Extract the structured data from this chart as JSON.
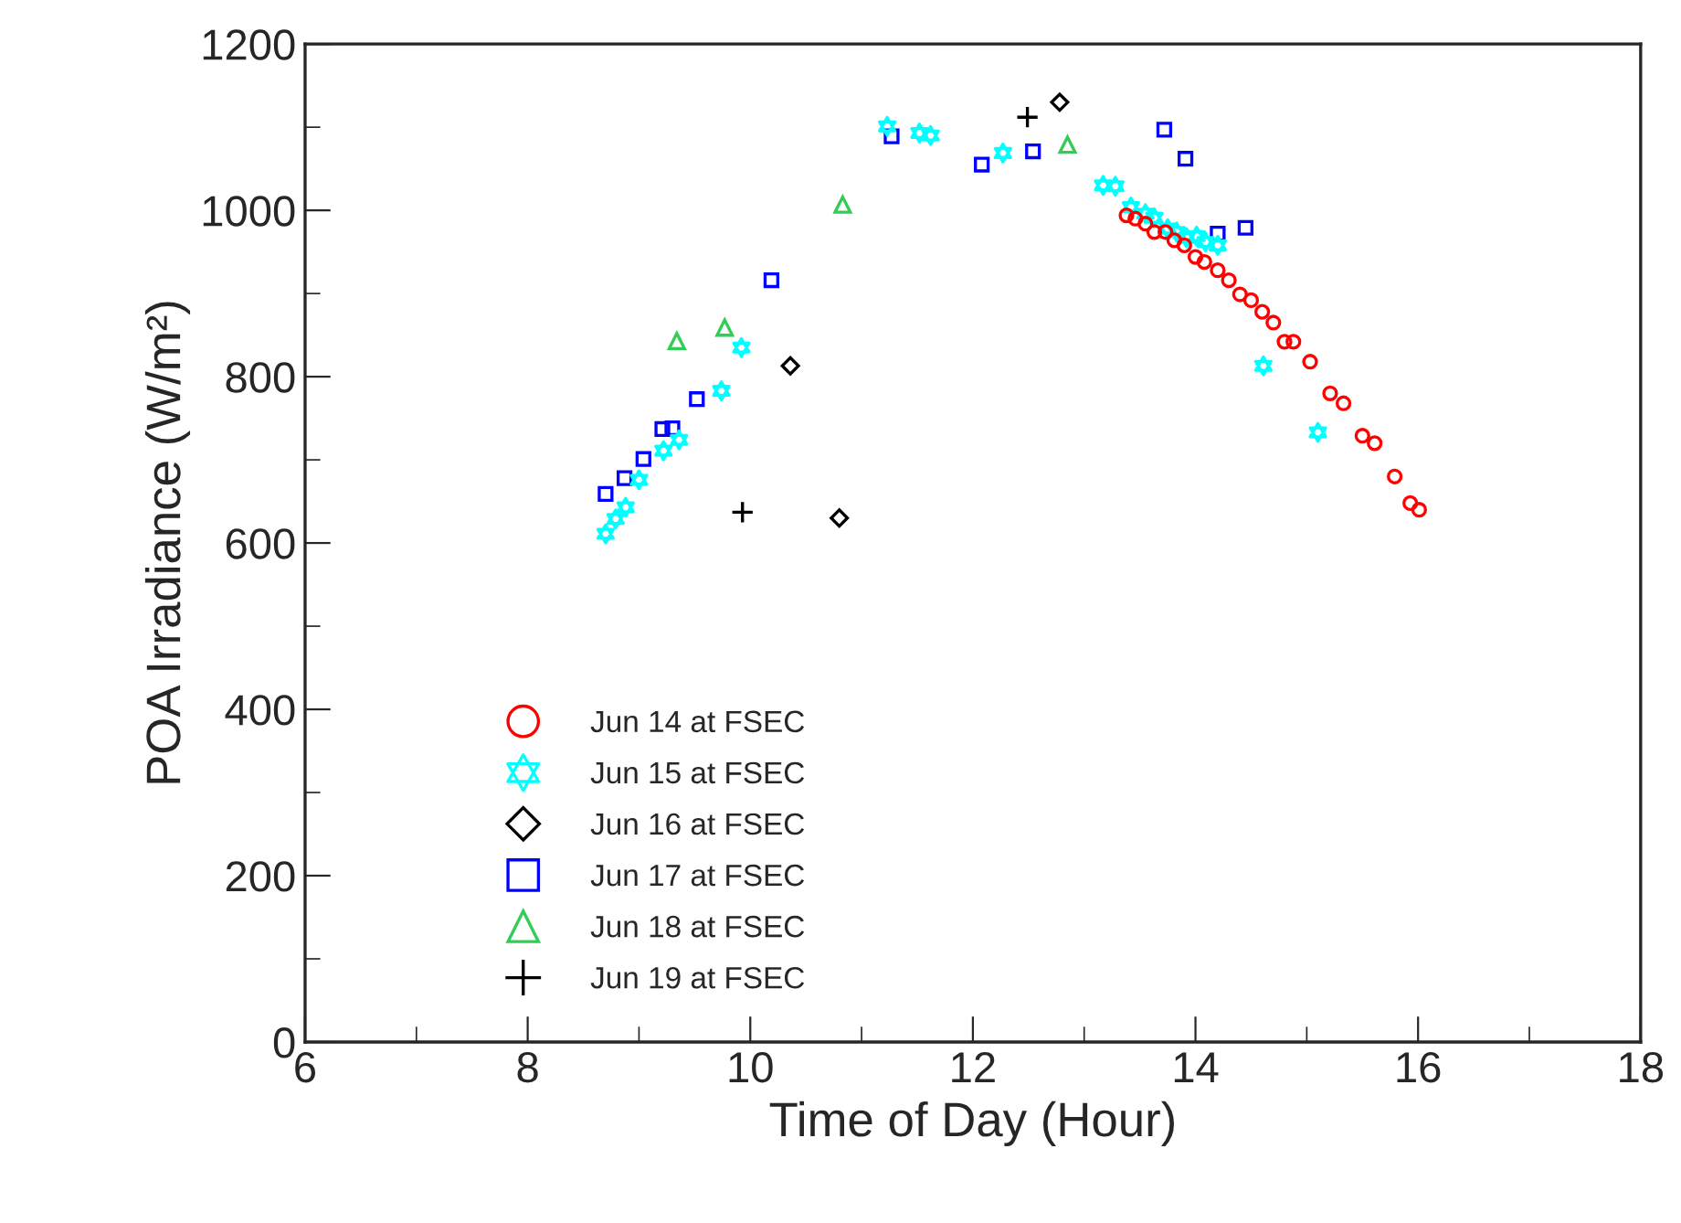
{
  "chart_data": {
    "type": "scatter",
    "xlabel": "Time of Day (Hour)",
    "ylabel": "POA Irradiance (W/m²)",
    "xlim": [
      6,
      18
    ],
    "xticks": [
      6,
      8,
      10,
      12,
      14,
      16,
      18
    ],
    "ylim": [
      0,
      1200
    ],
    "yticks": [
      0,
      200,
      400,
      600,
      800,
      1000,
      1200
    ],
    "grid": false,
    "legend": "bottom left",
    "series": [
      {
        "name": "Jun 14 at FSEC",
        "color": "#ff0000",
        "marker": "circle",
        "x": [
          13.38,
          13.46,
          13.55,
          13.63,
          13.73,
          13.81,
          13.9,
          14.0,
          14.08,
          14.2,
          14.3,
          14.4,
          14.5,
          14.6,
          14.7,
          14.8,
          14.88,
          15.03,
          15.21,
          15.33,
          15.5,
          15.61,
          15.79,
          15.93,
          16.01
        ],
        "values": [
          994,
          990,
          984,
          974,
          974,
          964,
          958,
          944,
          938,
          928,
          916,
          899,
          892,
          878,
          865,
          842,
          842,
          818,
          780,
          768,
          729,
          720,
          680,
          648,
          640
        ]
      },
      {
        "name": "Jun 15 at FSEC",
        "color": "#00ffff",
        "marker": "star",
        "x": [
          8.7,
          8.79,
          8.88,
          9.0,
          9.22,
          9.36,
          9.74,
          9.92,
          11.23,
          11.52,
          11.62,
          12.27,
          13.17,
          13.28,
          13.42,
          13.55,
          13.63,
          13.75,
          13.83,
          13.92,
          14.01,
          14.09,
          14.2,
          14.61,
          15.1
        ],
        "values": [
          611,
          629,
          643,
          676,
          711,
          724,
          783,
          835,
          1101,
          1093,
          1090,
          1069,
          1030,
          1029,
          1004,
          996,
          991,
          978,
          974,
          967,
          969,
          962,
          958,
          813,
          733
        ]
      },
      {
        "name": "Jun 16 at FSEC",
        "color": "#000000",
        "marker": "diamond",
        "x": [
          10.36,
          10.8,
          12.78
        ],
        "values": [
          813,
          630,
          1130
        ]
      },
      {
        "name": "Jun 17 at FSEC",
        "color": "#0000ff",
        "marker": "square",
        "x": [
          8.7,
          8.87,
          9.04,
          9.21,
          9.3,
          9.52,
          10.19,
          11.27,
          12.08,
          12.54,
          13.72,
          13.91,
          14.2,
          14.45
        ],
        "values": [
          659,
          678,
          701,
          737,
          738,
          773,
          916,
          1089,
          1055,
          1071,
          1097,
          1062,
          972,
          979
        ]
      },
      {
        "name": "Jun 18 at FSEC",
        "color": "#33cc55",
        "marker": "triangle",
        "x": [
          9.34,
          9.77,
          10.83,
          12.85
        ],
        "values": [
          843,
          859,
          1007,
          1079
        ]
      },
      {
        "name": "Jun 19 at FSEC",
        "color": "#000000",
        "marker": "cross",
        "x": [
          9.93,
          12.49
        ],
        "values": [
          637,
          1112
        ]
      }
    ]
  }
}
